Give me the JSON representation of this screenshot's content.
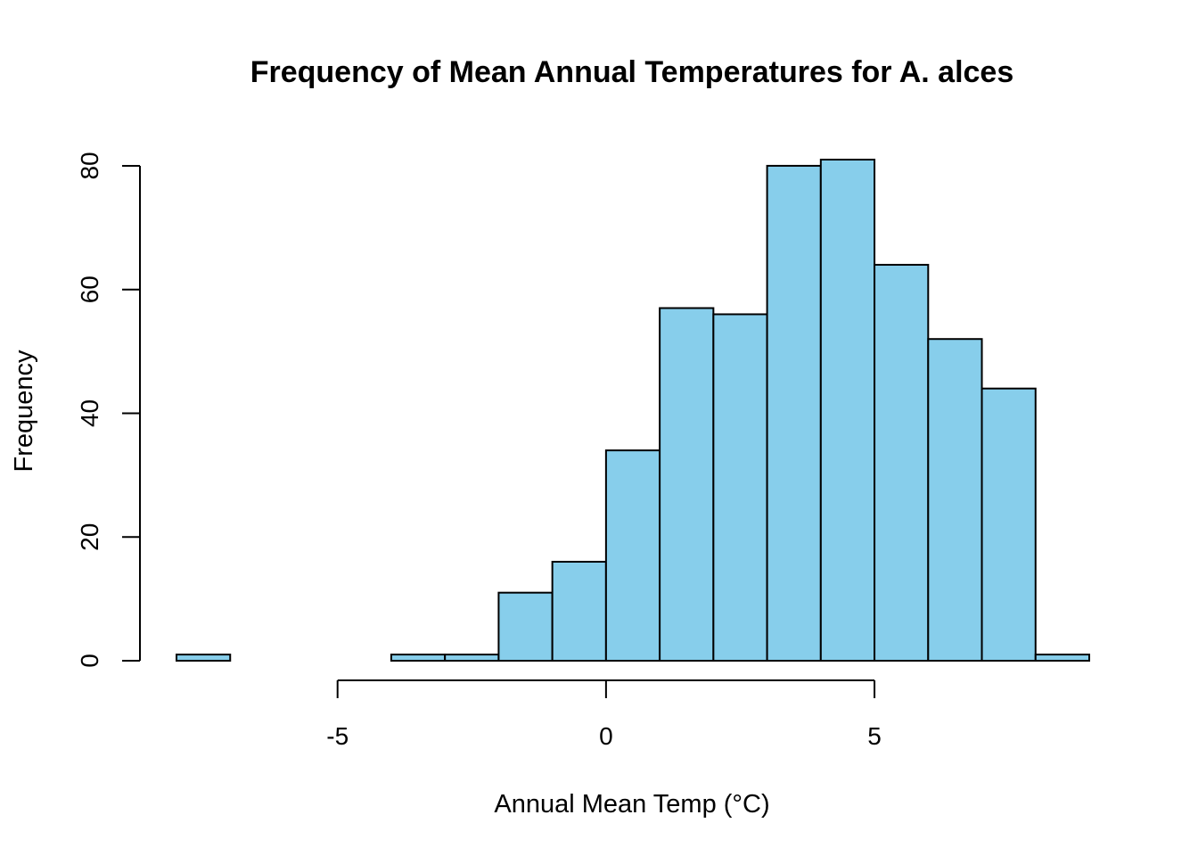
{
  "chart_data": {
    "type": "bar",
    "title": "Frequency of Mean Annual Temperatures for A. alces",
    "xlabel": "Annual Mean Temp (°C)",
    "ylabel": "Frequency",
    "bins": [
      {
        "from": -8,
        "to": -7,
        "count": 1
      },
      {
        "from": -7,
        "to": -6,
        "count": 0
      },
      {
        "from": -6,
        "to": -5,
        "count": 0
      },
      {
        "from": -5,
        "to": -4,
        "count": 0
      },
      {
        "from": -4,
        "to": -3,
        "count": 1
      },
      {
        "from": -3,
        "to": -2,
        "count": 1
      },
      {
        "from": -2,
        "to": -1,
        "count": 11
      },
      {
        "from": -1,
        "to": 0,
        "count": 16
      },
      {
        "from": 0,
        "to": 1,
        "count": 34
      },
      {
        "from": 1,
        "to": 2,
        "count": 57
      },
      {
        "from": 2,
        "to": 3,
        "count": 56
      },
      {
        "from": 3,
        "to": 4,
        "count": 80
      },
      {
        "from": 4,
        "to": 5,
        "count": 81
      },
      {
        "from": 5,
        "to": 6,
        "count": 64
      },
      {
        "from": 6,
        "to": 7,
        "count": 52
      },
      {
        "from": 7,
        "to": 8,
        "count": 44
      },
      {
        "from": 8,
        "to": 9,
        "count": 1
      }
    ],
    "xlim": [
      -8,
      9
    ],
    "ylim": [
      0,
      81
    ],
    "x_ticks": [
      -5,
      0,
      5
    ],
    "x_tick_labels": [
      "-5",
      "0",
      "5"
    ],
    "y_ticks": [
      0,
      20,
      40,
      60,
      80
    ],
    "y_tick_labels": [
      "0",
      "20",
      "40",
      "60",
      "80"
    ],
    "bar_color": "#87CEEB",
    "grid": false,
    "legend": "none"
  }
}
